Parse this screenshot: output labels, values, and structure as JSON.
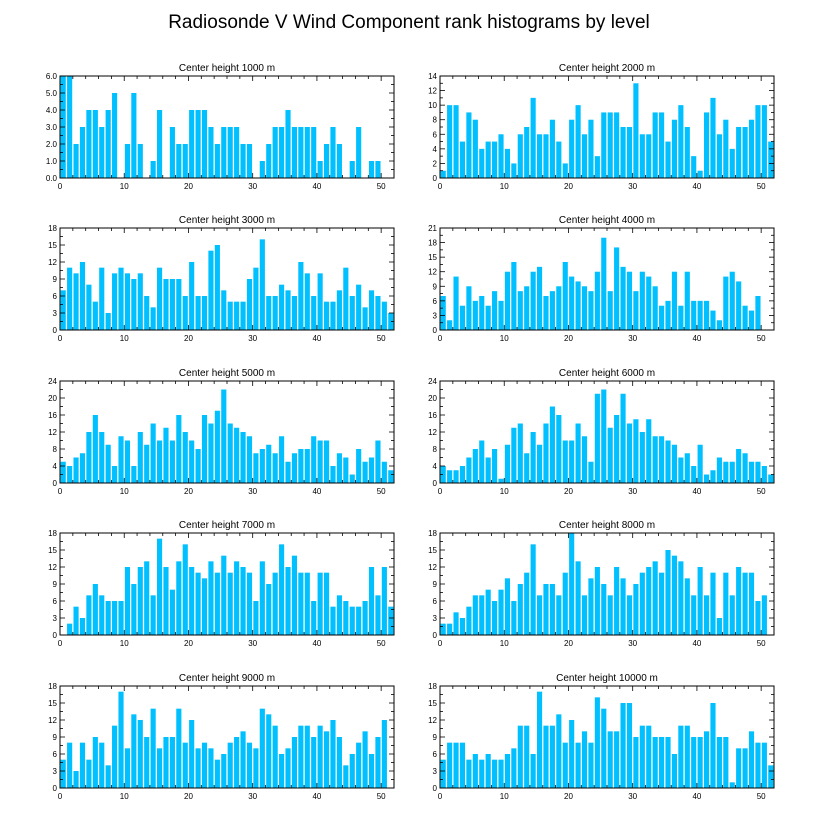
{
  "title": "Radiosonde V Wind Component rank histograms by level",
  "colors": {
    "bar": "#00c0ff",
    "axis": "#000000",
    "background": "#ffffff"
  },
  "chart_data": [
    {
      "type": "bar",
      "title": "Center height 1000 m",
      "xlim": [
        0,
        52
      ],
      "ylim": [
        0,
        6
      ],
      "xticks": [
        0,
        10,
        20,
        30,
        40,
        50
      ],
      "yticks": [
        "0.0",
        "1.0",
        "2.0",
        "3.0",
        "4.0",
        "5.0",
        "6.0"
      ],
      "values": [
        6,
        6,
        2,
        3,
        4,
        4,
        3,
        4,
        5,
        0,
        2,
        5,
        2,
        0,
        1,
        4,
        0,
        3,
        2,
        2,
        4,
        4,
        4,
        3,
        2,
        3,
        3,
        3,
        2,
        2,
        0,
        1,
        2,
        3,
        3,
        4,
        3,
        3,
        3,
        3,
        1,
        2,
        3,
        2,
        0,
        1,
        3,
        0,
        1,
        1,
        0,
        0
      ]
    },
    {
      "type": "bar",
      "title": "Center height 2000 m",
      "xlim": [
        0,
        52
      ],
      "ylim": [
        0,
        14
      ],
      "xticks": [
        0,
        10,
        20,
        30,
        40,
        50
      ],
      "yticks": [
        "0",
        "2",
        "4",
        "6",
        "8",
        "10",
        "12",
        "14"
      ],
      "values": [
        1,
        10,
        10,
        5,
        9,
        8,
        4,
        5,
        5,
        6,
        4,
        2,
        6,
        7,
        11,
        6,
        6,
        8,
        5,
        2,
        8,
        10,
        6,
        8,
        3,
        9,
        9,
        9,
        7,
        7,
        13,
        6,
        6,
        9,
        9,
        5,
        8,
        10,
        7,
        3,
        1,
        9,
        11,
        6,
        8,
        4,
        7,
        7,
        8,
        10,
        10,
        5
      ]
    },
    {
      "type": "bar",
      "title": "Center height 3000 m",
      "xlim": [
        0,
        52
      ],
      "ylim": [
        0,
        18
      ],
      "xticks": [
        0,
        10,
        20,
        30,
        40,
        50
      ],
      "yticks": [
        "0",
        "3",
        "6",
        "9",
        "12",
        "15",
        "18"
      ],
      "values": [
        7,
        11,
        10,
        12,
        8,
        5,
        11,
        3,
        10,
        11,
        10,
        9,
        10,
        6,
        4,
        11,
        9,
        9,
        9,
        6,
        12,
        6,
        6,
        14,
        15,
        7,
        5,
        5,
        5,
        9,
        11,
        16,
        6,
        6,
        8,
        7,
        6,
        12,
        10,
        6,
        10,
        5,
        5,
        7,
        11,
        6,
        8,
        4,
        7,
        6,
        5,
        3
      ]
    },
    {
      "type": "bar",
      "title": "Center height 4000 m",
      "xlim": [
        0,
        52
      ],
      "ylim": [
        0,
        21
      ],
      "xticks": [
        0,
        10,
        20,
        30,
        40,
        50
      ],
      "yticks": [
        "0",
        "3",
        "6",
        "9",
        "12",
        "15",
        "18",
        "21"
      ],
      "values": [
        7,
        2,
        11,
        5,
        9,
        6,
        7,
        5,
        8,
        6,
        12,
        14,
        8,
        9,
        12,
        13,
        7,
        8,
        9,
        14,
        11,
        10,
        9,
        8,
        12,
        19,
        8,
        17,
        13,
        12,
        8,
        12,
        11,
        9,
        5,
        6,
        12,
        5,
        12,
        6,
        6,
        6,
        4,
        2,
        11,
        12,
        10,
        5,
        4,
        7,
        0,
        0
      ]
    },
    {
      "type": "bar",
      "title": "Center height 5000 m",
      "xlim": [
        0,
        52
      ],
      "ylim": [
        0,
        24
      ],
      "xticks": [
        0,
        10,
        20,
        30,
        40,
        50
      ],
      "yticks": [
        "0",
        "4",
        "8",
        "12",
        "16",
        "20",
        "24"
      ],
      "values": [
        5,
        4,
        6,
        7,
        12,
        16,
        12,
        9,
        4,
        11,
        10,
        4,
        12,
        9,
        14,
        10,
        13,
        10,
        16,
        12,
        10,
        8,
        16,
        14,
        17,
        22,
        14,
        13,
        12,
        11,
        7,
        8,
        9,
        7,
        11,
        5,
        7,
        8,
        8,
        11,
        10,
        10,
        4,
        7,
        6,
        2,
        8,
        5,
        6,
        10,
        5,
        3
      ]
    },
    {
      "type": "bar",
      "title": "Center height 6000 m",
      "xlim": [
        0,
        52
      ],
      "ylim": [
        0,
        24
      ],
      "xticks": [
        0,
        10,
        20,
        30,
        40,
        50
      ],
      "yticks": [
        "0",
        "4",
        "8",
        "12",
        "16",
        "20",
        "24"
      ],
      "values": [
        4,
        3,
        3,
        4,
        6,
        8,
        10,
        6,
        8,
        1,
        9,
        13,
        14,
        7,
        12,
        9,
        14,
        18,
        16,
        10,
        10,
        14,
        11,
        5,
        21,
        22,
        13,
        16,
        21,
        14,
        15,
        12,
        15,
        11,
        11,
        10,
        9,
        6,
        7,
        4,
        9,
        2,
        3,
        6,
        5,
        5,
        8,
        7,
        5,
        5,
        4,
        2
      ]
    },
    {
      "type": "bar",
      "title": "Center height 7000 m",
      "xlim": [
        0,
        52
      ],
      "ylim": [
        0,
        18
      ],
      "xticks": [
        0,
        10,
        20,
        30,
        40,
        50
      ],
      "yticks": [
        "0",
        "3",
        "6",
        "9",
        "12",
        "15",
        "18"
      ],
      "values": [
        0,
        2,
        5,
        3,
        7,
        9,
        7,
        6,
        6,
        6,
        12,
        9,
        12,
        13,
        7,
        17,
        12,
        8,
        13,
        16,
        12,
        11,
        10,
        13,
        11,
        14,
        11,
        13,
        12,
        11,
        6,
        13,
        9,
        11,
        16,
        12,
        14,
        11,
        11,
        6,
        11,
        11,
        5,
        7,
        6,
        5,
        5,
        6,
        12,
        7,
        12,
        5
      ]
    },
    {
      "type": "bar",
      "title": "Center height 8000 m",
      "xlim": [
        0,
        52
      ],
      "ylim": [
        0,
        18
      ],
      "xticks": [
        0,
        10,
        20,
        30,
        40,
        50
      ],
      "yticks": [
        "0",
        "3",
        "6",
        "9",
        "12",
        "15",
        "18"
      ],
      "values": [
        2,
        2,
        4,
        3,
        5,
        7,
        7,
        8,
        6,
        8,
        10,
        6,
        9,
        11,
        16,
        7,
        9,
        9,
        7,
        11,
        18,
        13,
        7,
        10,
        12,
        9,
        7,
        12,
        10,
        7,
        9,
        11,
        12,
        13,
        11,
        15,
        14,
        13,
        10,
        7,
        12,
        7,
        11,
        3,
        11,
        7,
        12,
        11,
        11,
        6,
        7,
        0
      ]
    },
    {
      "type": "bar",
      "title": "Center height 9000 m",
      "xlim": [
        0,
        52
      ],
      "ylim": [
        0,
        18
      ],
      "xticks": [
        0,
        10,
        20,
        30,
        40,
        50
      ],
      "yticks": [
        "0",
        "3",
        "6",
        "9",
        "12",
        "15",
        "18"
      ],
      "values": [
        5,
        8,
        3,
        8,
        5,
        9,
        8,
        4,
        11,
        17,
        7,
        13,
        12,
        9,
        14,
        7,
        9,
        9,
        14,
        8,
        12,
        7,
        8,
        7,
        5,
        6,
        8,
        9,
        10,
        8,
        7,
        14,
        13,
        11,
        6,
        7,
        9,
        11,
        11,
        9,
        11,
        10,
        12,
        9,
        4,
        6,
        8,
        10,
        6,
        9,
        12,
        0
      ]
    },
    {
      "type": "bar",
      "title": "Center height 10000 m",
      "xlim": [
        0,
        52
      ],
      "ylim": [
        0,
        18
      ],
      "xticks": [
        0,
        10,
        20,
        30,
        40,
        50
      ],
      "yticks": [
        "0",
        "3",
        "6",
        "9",
        "12",
        "15",
        "18"
      ],
      "values": [
        5,
        8,
        8,
        8,
        5,
        6,
        5,
        6,
        5,
        5,
        6,
        7,
        11,
        11,
        6,
        17,
        11,
        11,
        13,
        8,
        12,
        8,
        10,
        8,
        16,
        14,
        10,
        10,
        15,
        15,
        9,
        11,
        11,
        9,
        9,
        9,
        6,
        11,
        11,
        9,
        9,
        10,
        15,
        9,
        9,
        1,
        7,
        7,
        10,
        8,
        8,
        4
      ]
    }
  ]
}
